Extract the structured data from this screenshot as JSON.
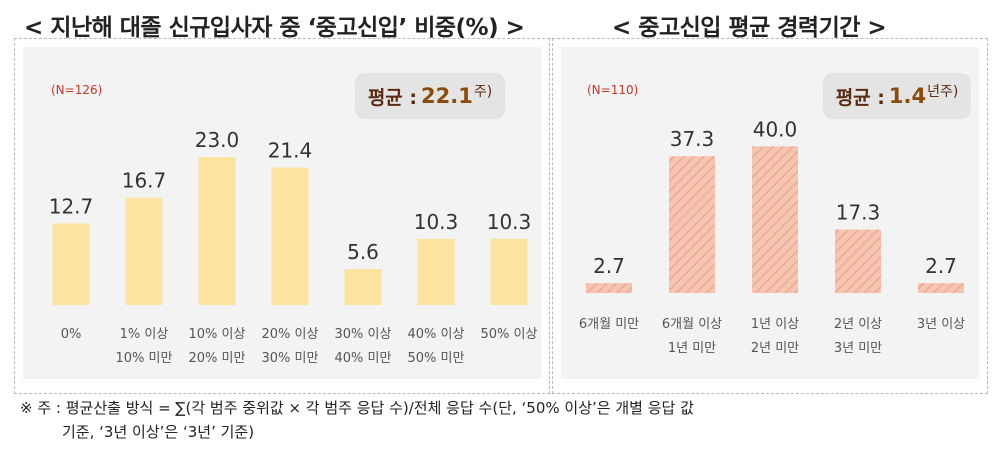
{
  "left": {
    "title": "< 지난해 대졸 신규입사자 중 ‘중고신입’ 비중(%) >",
    "n_label": "(N=126)",
    "avg_prefix": "평균 : ",
    "avg_value": "22.1",
    "avg_unit": "주)"
  },
  "right": {
    "title": "< 중고신입 평균 경력기간 >",
    "n_label": "(N=110)",
    "avg_prefix": "평균 : ",
    "avg_value": "1.4",
    "avg_unit": "년주)"
  },
  "footnote": {
    "line1": "※ 주 : 평균산출 방식 = ∑(각 범주 중위값 × 각 범주 응답 수)/전체 응답 수(단, ‘50% 이상’은 개별 응답 값",
    "line2": "기준, ‘3년 이상’은 ‘3년’ 기준)"
  },
  "colors": {
    "left_bar": "#fde3a0",
    "right_bar": "#f6c5b1",
    "right_hatch": "#ebab91",
    "label_text": "#555555",
    "value_text": "#333333"
  },
  "chart_data": [
    {
      "type": "bar",
      "title": "지난해 대졸 신규입사자 중 ‘중고신입’ 비중(%)",
      "categories": [
        [
          "0%"
        ],
        [
          "1% 이상",
          "10% 미만"
        ],
        [
          "10% 이상",
          "20% 미만"
        ],
        [
          "20% 이상",
          "30% 미만"
        ],
        [
          "30% 이상",
          "40% 미만"
        ],
        [
          "40% 이상",
          "50% 미만"
        ],
        [
          "50% 이상"
        ]
      ],
      "values": [
        12.7,
        16.7,
        23.0,
        21.4,
        5.6,
        10.3,
        10.3
      ],
      "value_labels": [
        "12.7",
        "16.7",
        "23.0",
        "21.4",
        "5.6",
        "10.3",
        "10.3"
      ],
      "ylim": [
        0,
        28
      ],
      "grid": false
    },
    {
      "type": "bar",
      "title": "중고신입 평균 경력기간",
      "categories": [
        [
          "6개월 미만"
        ],
        [
          "6개월 이상",
          "1년 미만"
        ],
        [
          "1년 이상",
          "2년 미만"
        ],
        [
          "2년 이상",
          "3년 미만"
        ],
        [
          "3년 이상"
        ]
      ],
      "values": [
        2.7,
        37.3,
        40.0,
        17.3,
        2.7
      ],
      "value_labels": [
        "2.7",
        "37.3",
        "40.0",
        "17.3",
        "2.7"
      ],
      "ylim": [
        0,
        48
      ],
      "grid": false
    }
  ]
}
